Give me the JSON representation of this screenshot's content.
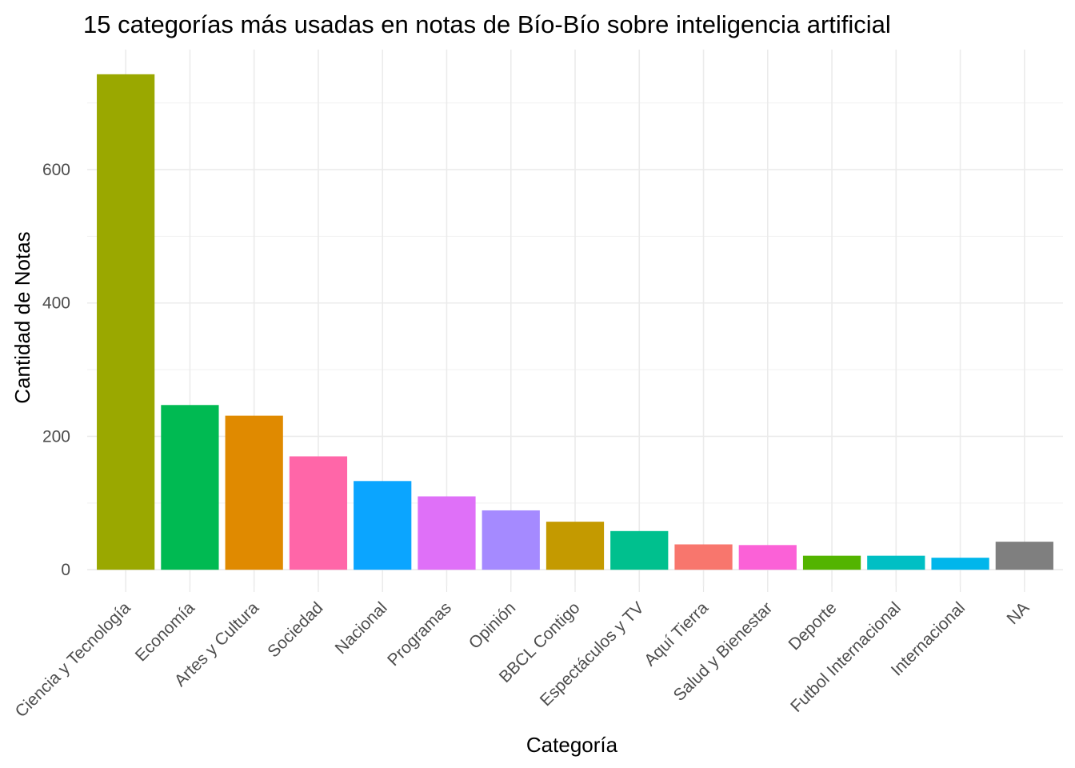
{
  "chart_data": {
    "type": "bar",
    "title": "15 categorías más usadas en notas de Bío-Bío sobre inteligencia artificial",
    "xlabel": "Categoría",
    "ylabel": "Cantidad de Notas",
    "categories": [
      "Ciencia y Tecnología",
      "Economía",
      "Artes y Cultura",
      "Sociedad",
      "Nacional",
      "Programas",
      "Opinión",
      "BBCL Contigo",
      "Espectáculos y TV",
      "Aquí Tierra",
      "Salud y Bienestar",
      "Deporte",
      "Futbol Internacional",
      "Internacional",
      "NA"
    ],
    "values": [
      743,
      247,
      231,
      170,
      133,
      110,
      89,
      72,
      58,
      38,
      37,
      21,
      21,
      18,
      42
    ],
    "colors": [
      "#9aa800",
      "#00ba52",
      "#e08a00",
      "#ff66a8",
      "#0ba5ff",
      "#df70f8",
      "#a58aff",
      "#c49a00",
      "#00c08e",
      "#f8766d",
      "#fb61d7",
      "#53b400",
      "#00bfc4",
      "#00b6eb",
      "#7f7f7f"
    ],
    "ylim": [
      -25,
      780
    ],
    "yticks": [
      0,
      200,
      400,
      600
    ],
    "yticks_minor": [
      100,
      300,
      500,
      700
    ],
    "grid": true,
    "legend": "none"
  }
}
